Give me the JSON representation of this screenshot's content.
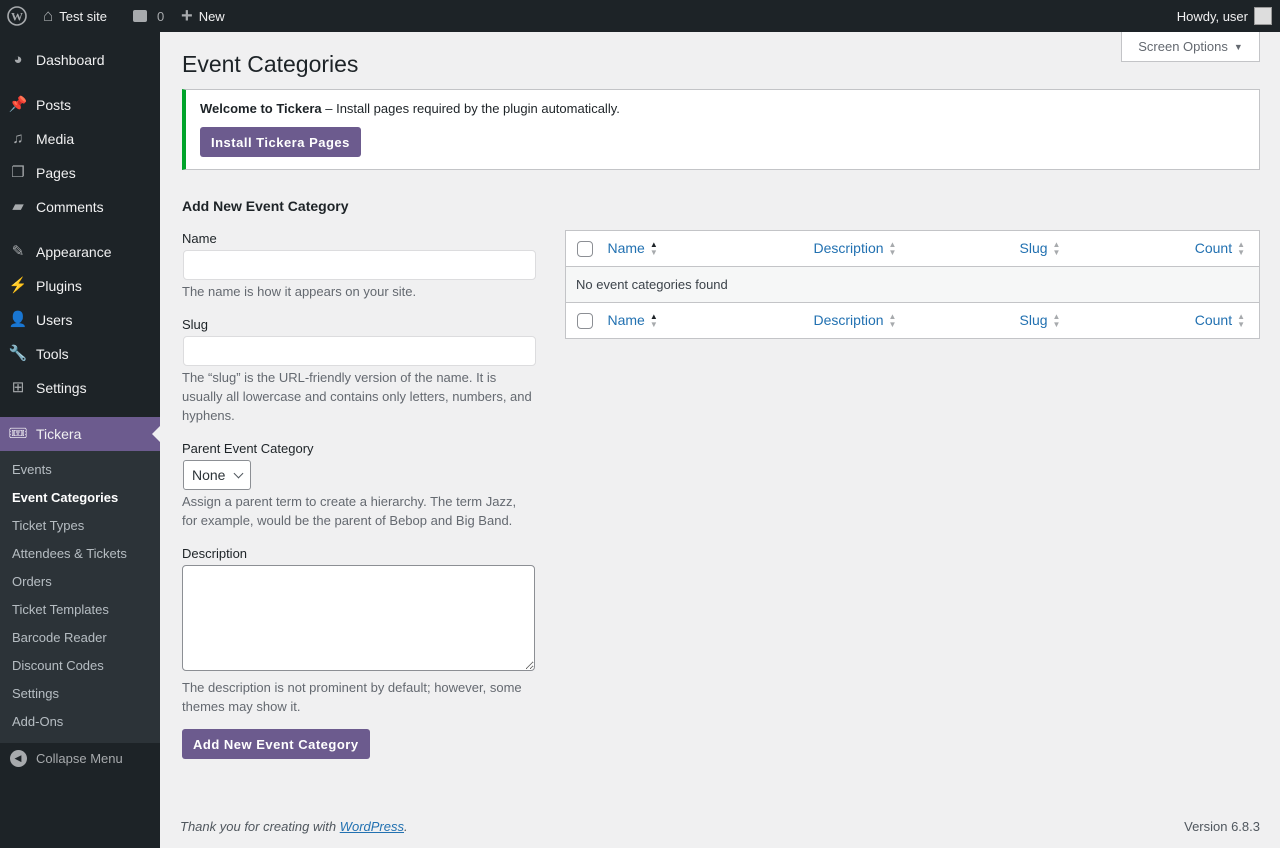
{
  "adminbar": {
    "site": "Test site",
    "comments": "0",
    "new": "New",
    "howdy": "Howdy, user"
  },
  "sidebar": {
    "items": [
      {
        "label": "Dashboard",
        "icon": "dashboard-icon",
        "glyph": "◕"
      },
      {
        "label": "Posts",
        "icon": "pin-icon",
        "glyph": "📌"
      },
      {
        "label": "Media",
        "icon": "media-icon",
        "glyph": "♫"
      },
      {
        "label": "Pages",
        "icon": "pages-icon",
        "glyph": "❐"
      },
      {
        "label": "Comments",
        "icon": "comment-icon",
        "glyph": "▰"
      },
      {
        "label": "Appearance",
        "icon": "brush-icon",
        "glyph": "✎"
      },
      {
        "label": "Plugins",
        "icon": "plugin-icon",
        "glyph": "⚡"
      },
      {
        "label": "Users",
        "icon": "user-icon",
        "glyph": "👤"
      },
      {
        "label": "Tools",
        "icon": "wrench-icon",
        "glyph": "🔧"
      },
      {
        "label": "Settings",
        "icon": "settings-icon",
        "glyph": "⊞"
      },
      {
        "label": "Tickera",
        "icon": "ticket-icon",
        "glyph": "🎟"
      }
    ],
    "submenu": [
      "Events",
      "Event Categories",
      "Ticket Types",
      "Attendees & Tickets",
      "Orders",
      "Ticket Templates",
      "Barcode Reader",
      "Discount Codes",
      "Settings",
      "Add-Ons"
    ],
    "collapse": "Collapse Menu"
  },
  "page": {
    "title": "Event Categories",
    "screen_options": "Screen Options"
  },
  "notice": {
    "bold": "Welcome to Tickera",
    "text": " – Install pages required by the plugin automatically.",
    "button": "Install Tickera Pages"
  },
  "form": {
    "heading": "Add New Event Category",
    "name_label": "Name",
    "name_value": "",
    "name_hint": "The name is how it appears on your site.",
    "slug_label": "Slug",
    "slug_value": "",
    "slug_hint": "The “slug” is the URL-friendly version of the name. It is usually all lowercase and contains only letters, numbers, and hyphens.",
    "parent_label": "Parent Event Category",
    "parent_value": "None",
    "parent_hint": "Assign a parent term to create a hierarchy. The term Jazz, for example, would be the parent of Bebop and Big Band.",
    "desc_label": "Description",
    "desc_value": "",
    "desc_hint": "The description is not prominent by default; however, some themes may show it.",
    "submit": "Add New Event Category"
  },
  "table": {
    "columns": [
      "Name",
      "Description",
      "Slug",
      "Count"
    ],
    "empty": "No event categories found"
  },
  "footer": {
    "thanks": "Thank you for creating with ",
    "link": "WordPress",
    "period": ".",
    "version": "Version 6.8.3"
  },
  "colors": {
    "accent": "#6c5b8e",
    "link": "#2271b1",
    "notice_border": "#00a32a"
  }
}
